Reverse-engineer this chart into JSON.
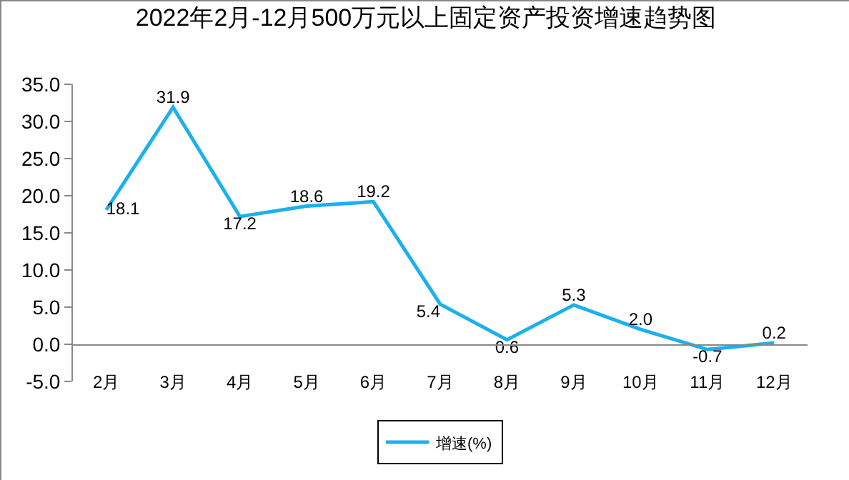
{
  "chart_data": {
    "type": "line",
    "title": "2022年2月-12月500万元以上固定资产投资增速趋势图",
    "categories": [
      "2月",
      "3月",
      "4月",
      "5月",
      "6月",
      "7月",
      "8月",
      "9月",
      "10月",
      "11月",
      "12月"
    ],
    "series": [
      {
        "name": "增速(%)",
        "color": "#1cb0ec",
        "values": [
          18.1,
          31.9,
          17.2,
          18.6,
          19.2,
          5.4,
          0.6,
          5.3,
          2.0,
          -0.7,
          0.2
        ],
        "value_labels": [
          "18.1",
          "31.9",
          "17.2",
          "18.6",
          "19.2",
          "5.4",
          "0.6",
          "5.3",
          "2.0",
          "-0.7",
          "0.2"
        ]
      }
    ],
    "ylim": [
      -5,
      35
    ],
    "yticks": [
      {
        "value": -5,
        "label": "-5.0"
      },
      {
        "value": 0,
        "label": "0.0"
      },
      {
        "value": 5,
        "label": "5.0"
      },
      {
        "value": 10,
        "label": "10.0"
      },
      {
        "value": 15,
        "label": "15.0"
      },
      {
        "value": 20,
        "label": "20.0"
      },
      {
        "value": 25,
        "label": "25.0"
      },
      {
        "value": 30,
        "label": "30.0"
      },
      {
        "value": 35,
        "label": "35.0"
      }
    ],
    "grid": false,
    "legend": "bottom",
    "marker": "none",
    "line_style": "solid"
  }
}
